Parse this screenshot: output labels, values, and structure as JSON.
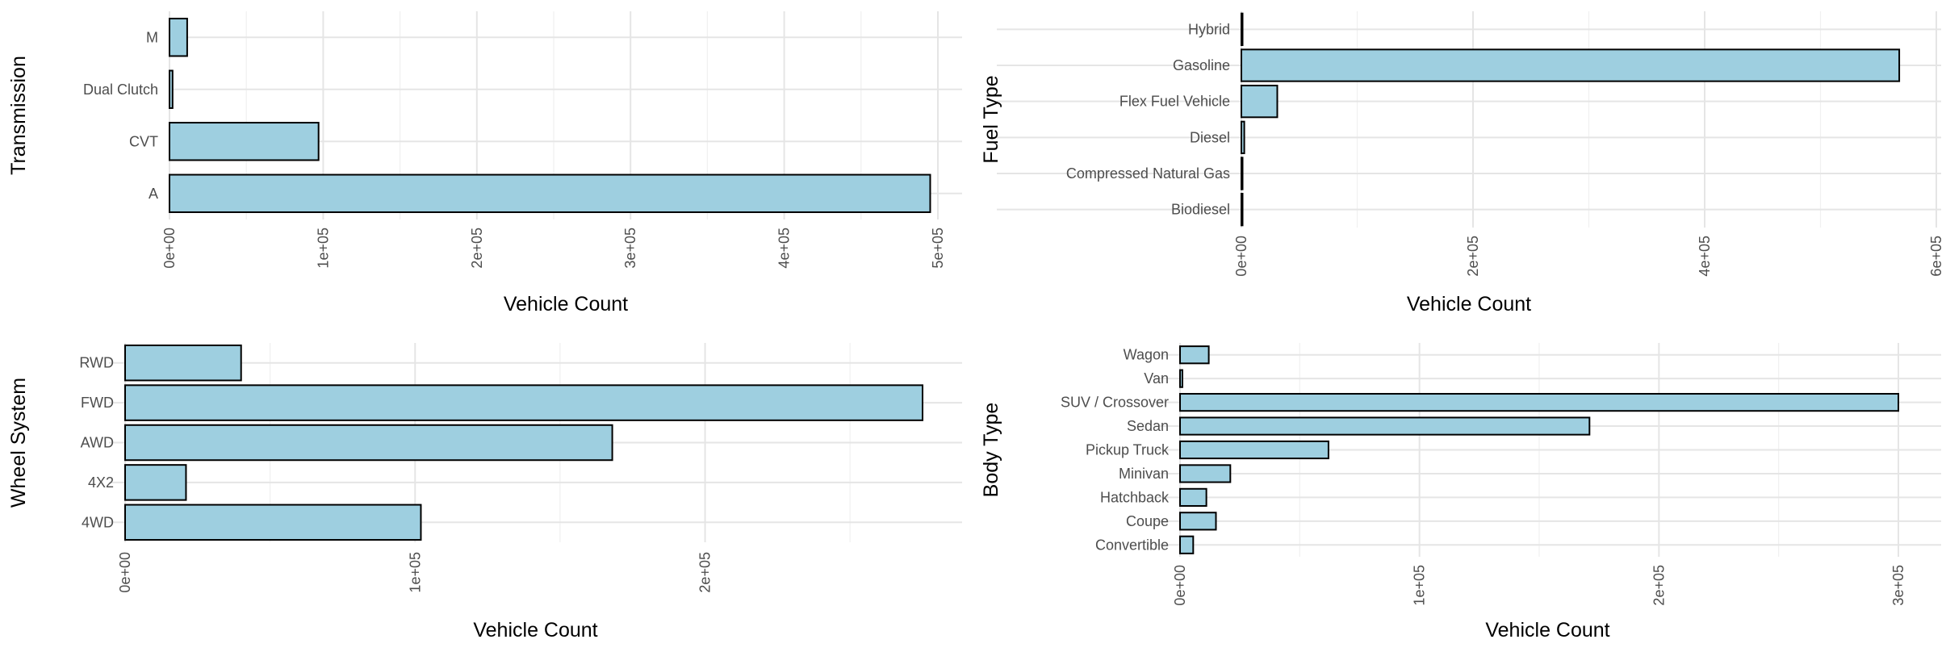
{
  "colors": {
    "bar_fill": "#9ecfe0",
    "bar_stroke": "#000000",
    "grid_major": "#e5e5e5",
    "grid_minor": "#f0f0f0"
  },
  "chart_data": [
    {
      "type": "bar",
      "orientation": "horizontal",
      "categories": [
        "A",
        "CVT",
        "Dual Clutch",
        "M"
      ],
      "values": [
        495000,
        97000,
        2000,
        11500
      ],
      "xlabel": "Vehicle Count",
      "ylabel": "Transmission",
      "xlim": [
        0,
        500000
      ],
      "xticks": [
        0,
        100000,
        200000,
        300000,
        400000,
        500000
      ],
      "xtick_labels": [
        "0e+00",
        "1e+05",
        "2e+05",
        "3e+05",
        "4e+05",
        "5e+05"
      ],
      "grid": true
    },
    {
      "type": "bar",
      "orientation": "horizontal",
      "categories": [
        "Biodiesel",
        "Compressed Natural Gas",
        "Diesel",
        "Flex Fuel Vehicle",
        "Gasoline",
        "Hybrid"
      ],
      "values": [
        300,
        100,
        2500,
        31000,
        568000,
        600
      ],
      "xlabel": "Vehicle Count",
      "ylabel": "Fuel Type",
      "xlim": [
        0,
        600000
      ],
      "xticks": [
        0,
        200000,
        400000,
        600000
      ],
      "xtick_labels": [
        "0e+00",
        "2e+05",
        "4e+05",
        "6e+05"
      ],
      "grid": true
    },
    {
      "type": "bar",
      "orientation": "horizontal",
      "categories": [
        "4WD",
        "4X2",
        "AWD",
        "FWD",
        "RWD"
      ],
      "values": [
        102000,
        21000,
        168000,
        275000,
        40000
      ],
      "xlabel": "Vehicle Count",
      "ylabel": "Wheel System",
      "xlim": [
        0,
        275000
      ],
      "xticks": [
        0,
        100000,
        200000
      ],
      "xtick_labels": [
        "0e+00",
        "1e+05",
        "2e+05"
      ],
      "grid": true
    },
    {
      "type": "bar",
      "orientation": "horizontal",
      "categories": [
        "Convertible",
        "Coupe",
        "Hatchback",
        "Minivan",
        "Pickup Truck",
        "Sedan",
        "SUV / Crossover",
        "Van",
        "Wagon"
      ],
      "values": [
        5500,
        15000,
        11000,
        21000,
        62000,
        171000,
        300000,
        1000,
        12000
      ],
      "xlabel": "Vehicle Count",
      "ylabel": "Body Type",
      "xlim": [
        0,
        300000
      ],
      "xticks": [
        0,
        100000,
        200000,
        300000
      ],
      "xtick_labels": [
        "0e+00",
        "1e+05",
        "2e+05",
        "3e+05"
      ],
      "grid": true
    }
  ]
}
